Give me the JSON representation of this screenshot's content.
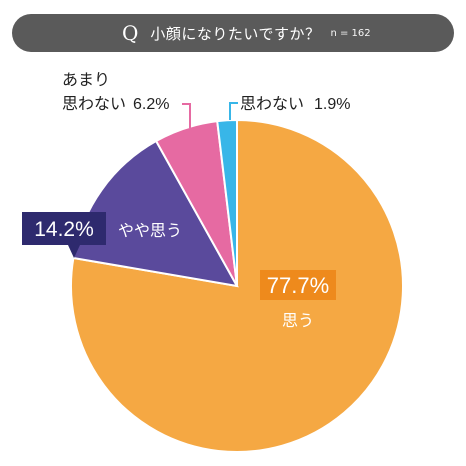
{
  "question": {
    "mark": "Q",
    "text": "小顔になりたいですか？",
    "n": "n = 162"
  },
  "chart_data": {
    "type": "pie",
    "title": "小顔になりたいですか？",
    "n": "n = 162",
    "start": "12 o'clock",
    "direction": "clockwise",
    "slices": [
      {
        "label": "思う",
        "value": 77.7,
        "value_label": "77.7%",
        "color": "#f5a843"
      },
      {
        "label": "やや思う",
        "value": 14.2,
        "value_label": "14.2%",
        "color": "#5a4a9c"
      },
      {
        "label": "あまり思わない",
        "label_lines": [
          "あまり",
          "思わない"
        ],
        "value": 6.2,
        "value_label": "6.2%",
        "color": "#e66aa2"
      },
      {
        "label": "思わない",
        "value": 1.9,
        "value_label": "1.9%",
        "color": "#38b6e8"
      }
    ]
  },
  "colors": {
    "header_bg": "#5a5a5a",
    "header_text": "#ffffff",
    "callout_box_dark": "#2e2a6e",
    "label_text": "#222222"
  }
}
